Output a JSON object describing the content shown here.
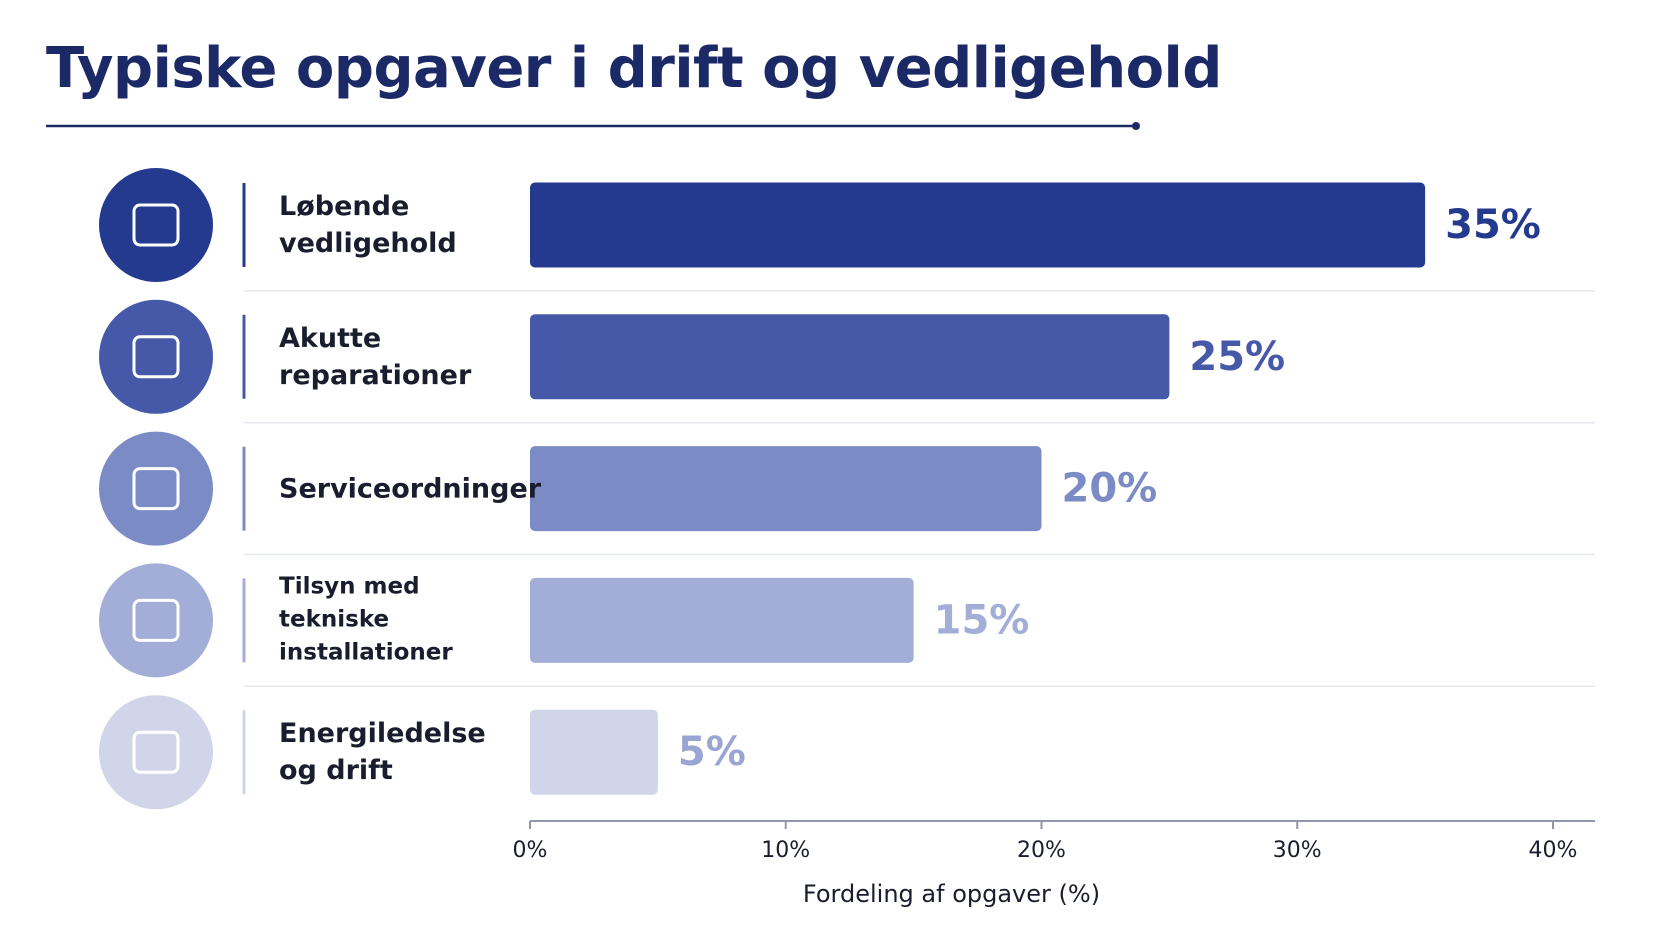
{
  "chart_data": {
    "type": "bar",
    "orientation": "horizontal",
    "title": "Typiske opgaver i drift og vedligehold",
    "categories": [
      "Løbende vedligehold",
      "Akutte reparationer",
      "Serviceordninger",
      "Tilsyn med tekniske installationer",
      "Energiledelse og drift"
    ],
    "values": [
      35,
      25,
      20,
      15,
      5
    ],
    "value_labels": [
      "35%",
      "25%",
      "20%",
      "15%",
      "5%"
    ],
    "colors": [
      "#233a8f",
      "#4658a8",
      "#7b8bc6",
      "#a3aed8",
      "#d0d5ea"
    ],
    "xlim": [
      0,
      40
    ],
    "xticks": [
      {
        "value": 0,
        "label": "0%"
      },
      {
        "value": 10,
        "label": "10%"
      },
      {
        "value": 20,
        "label": "20%"
      },
      {
        "value": 30,
        "label": "30%"
      },
      {
        "value": 40,
        "label": "40%"
      }
    ],
    "x_label": "Fordeling af opgaver (%)"
  }
}
